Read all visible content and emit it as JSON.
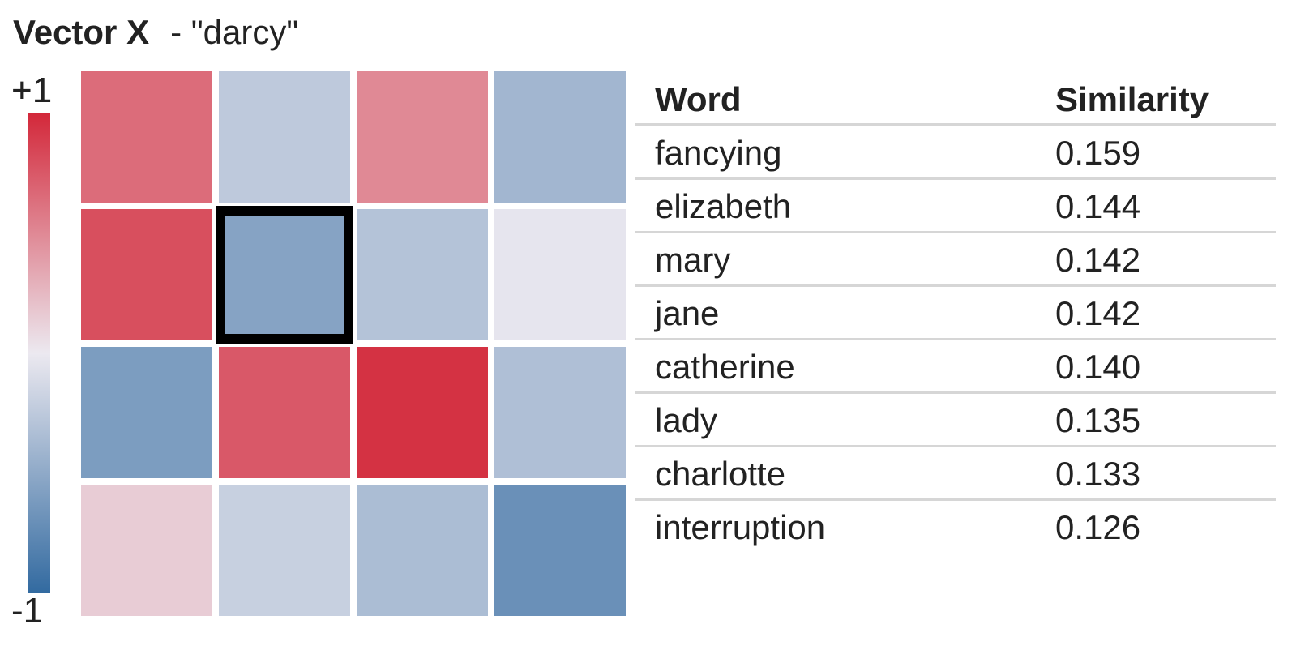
{
  "title": {
    "vector_name": "Vector X",
    "word_label": "- \"darcy\""
  },
  "colors": {
    "positive": "#d3283a",
    "neutral": "#ece9f0",
    "negative": "#326aa0"
  },
  "chart_data": [
    {
      "type": "heatmap",
      "title": "Vector X - \"darcy\"",
      "rows": 4,
      "cols": 4,
      "value_range": [
        -1,
        1
      ],
      "scale_labels": {
        "max": "+1",
        "min": "-1"
      },
      "values": [
        [
          0.65,
          -0.25,
          0.5,
          -0.4
        ],
        [
          0.8,
          -0.55,
          -0.3,
          -0.03
        ],
        [
          -0.6,
          0.75,
          0.95,
          -0.33
        ],
        [
          0.15,
          -0.2,
          -0.35,
          -0.7
        ]
      ],
      "selected_cell": {
        "row": 1,
        "col": 1
      }
    },
    {
      "type": "table",
      "columns": [
        "Word",
        "Similarity"
      ],
      "rows": [
        [
          "fancying",
          "0.159"
        ],
        [
          "elizabeth",
          "0.144"
        ],
        [
          "mary",
          "0.142"
        ],
        [
          "jane",
          "0.142"
        ],
        [
          "catherine",
          "0.140"
        ],
        [
          "lady",
          "0.135"
        ],
        [
          "charlotte",
          "0.133"
        ],
        [
          "interruption",
          "0.126"
        ]
      ]
    }
  ]
}
